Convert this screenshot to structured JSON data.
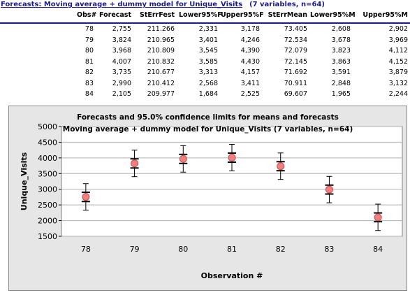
{
  "sheet": {
    "title": "Forecasts:  Moving average + dummy model for Unique_Visits",
    "title_note": "(7 variables, n=64)",
    "columns": [
      "Obs#",
      "Forecast",
      "StErrFest",
      "Lower95%F",
      "Upper95%F",
      "StErrMean",
      "Lower95%M",
      "Upper95%M"
    ],
    "rows": [
      [
        "78",
        "2,755",
        "211.266",
        "2,331",
        "3,178",
        "73.405",
        "2,608",
        "2,902"
      ],
      [
        "79",
        "3,824",
        "210.965",
        "3,401",
        "4,246",
        "72.534",
        "3,678",
        "3,969"
      ],
      [
        "80",
        "3,968",
        "210.809",
        "3,545",
        "4,390",
        "72.079",
        "3,823",
        "4,112"
      ],
      [
        "81",
        "4,007",
        "210.832",
        "3,585",
        "4,430",
        "72.145",
        "3,863",
        "4,152"
      ],
      [
        "82",
        "3,735",
        "210.677",
        "3,313",
        "4,157",
        "71.692",
        "3,591",
        "3,879"
      ],
      [
        "83",
        "2,990",
        "210.412",
        "2,568",
        "3,411",
        "70.911",
        "2,848",
        "3,132"
      ],
      [
        "84",
        "2,105",
        "209.977",
        "1,684",
        "2,525",
        "69.607",
        "1,965",
        "2,244"
      ]
    ]
  },
  "colors": {
    "title": "#1a1a8c",
    "marker_fill": "#f08080",
    "marker_stroke": "#c84a4a",
    "plot_bg": "#ffffff",
    "frame_bg": "#e6e6e6",
    "error_bar": "#000000"
  },
  "chart_data": {
    "type": "scatter",
    "title": "Forecasts and 95.0% confidence limits for means and forecasts",
    "subtitle": "Moving average + dummy model for Unique_Visits     (7 variables, n=64)",
    "xlabel": "Observation #",
    "ylabel": "Unique_Visits",
    "ylim": [
      1500,
      5000
    ],
    "yticks": [
      "1500",
      "2000",
      "2500",
      "3000",
      "3500",
      "4000",
      "4500",
      "5000"
    ],
    "categories": [
      "78",
      "79",
      "80",
      "81",
      "82",
      "83",
      "84"
    ],
    "grid": true,
    "legend": "none",
    "forecast": [
      2755,
      3824,
      3968,
      4007,
      3735,
      2990,
      2105
    ],
    "lower_forecast": [
      2331,
      3401,
      3545,
      3585,
      3313,
      2568,
      1684
    ],
    "upper_forecast": [
      3178,
      4246,
      4390,
      4430,
      4157,
      3411,
      2525
    ],
    "lower_mean": [
      2608,
      3678,
      3823,
      3863,
      3591,
      2848,
      1965
    ],
    "upper_mean": [
      2902,
      3969,
      4112,
      4152,
      3879,
      3132,
      2244
    ]
  }
}
